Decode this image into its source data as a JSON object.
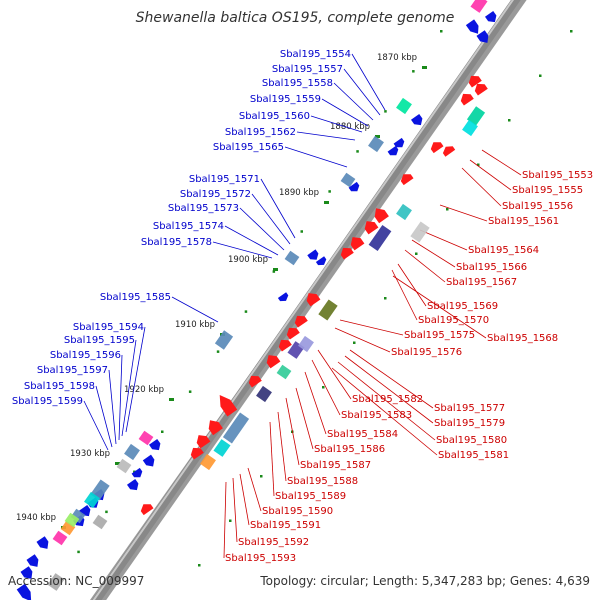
{
  "title": "Shewanella baltica OS195, complete genome",
  "footer": {
    "accession": "Accession: NC_009997",
    "summary": "Topology: circular; Length: 5,347,283 bp; Genes: 4,639"
  },
  "colors": {
    "backbone": "#888888",
    "forward_label": "#0000cc",
    "reverse_label": "#cc0000",
    "forward_gene": "#0a14e0",
    "reverse_gene": "#ff1a1a",
    "tick": "#1a8a1a"
  },
  "scale_labels": [
    "1870 kbp",
    "1880 kbp",
    "1890 kbp",
    "1900 kbp",
    "1910 kbp",
    "1920 kbp",
    "1930 kbp",
    "1940 kbp"
  ],
  "forward_genes": [
    "Sbal195_1554",
    "Sbal195_1557",
    "Sbal195_1558",
    "Sbal195_1559",
    "Sbal195_1560",
    "Sbal195_1562",
    "Sbal195_1565",
    "Sbal195_1571",
    "Sbal195_1572",
    "Sbal195_1573",
    "Sbal195_1574",
    "Sbal195_1578",
    "Sbal195_1585",
    "Sbal195_1594",
    "Sbal195_1595",
    "Sbal195_1596",
    "Sbal195_1597",
    "Sbal195_1598",
    "Sbal195_1599"
  ],
  "reverse_genes": [
    "Sbal195_1553",
    "Sbal195_1555",
    "Sbal195_1556",
    "Sbal195_1561",
    "Sbal195_1564",
    "Sbal195_1566",
    "Sbal195_1567",
    "Sbal195_1569",
    "Sbal195_1570",
    "Sbal195_1568",
    "Sbal195_1575",
    "Sbal195_1576",
    "Sbal195_1577",
    "Sbal195_1579",
    "Sbal195_1580",
    "Sbal195_1581",
    "Sbal195_1582",
    "Sbal195_1583",
    "Sbal195_1584",
    "Sbal195_1586",
    "Sbal195_1587",
    "Sbal195_1588",
    "Sbal195_1589",
    "Sbal195_1590",
    "Sbal195_1591",
    "Sbal195_1592",
    "Sbal195_1593"
  ]
}
